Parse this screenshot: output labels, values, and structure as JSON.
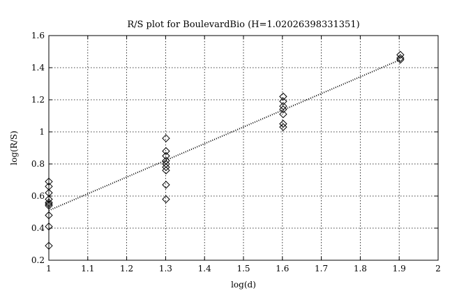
{
  "chart_data": {
    "type": "scatter",
    "title": "R/S plot for BoulevardBio (H=1.02026398331351)",
    "xlabel": "log(d)",
    "ylabel": "log(R/S)",
    "xlim": [
      1,
      2
    ],
    "ylim": [
      0.2,
      1.6
    ],
    "xticks": [
      "1",
      "1.1",
      "1.2",
      "1.3",
      "1.4",
      "1.5",
      "1.6",
      "1.7",
      "1.8",
      "1.9",
      "2"
    ],
    "yticks": [
      "0.2",
      "0.4",
      "0.6",
      "0.8",
      "1",
      "1.2",
      "1.4",
      "1.6"
    ],
    "xtick_values": [
      1,
      1.1,
      1.2,
      1.3,
      1.4,
      1.5,
      1.6,
      1.7,
      1.8,
      1.9,
      2
    ],
    "ytick_values": [
      0.2,
      0.4,
      0.6,
      0.8,
      1,
      1.2,
      1.4,
      1.6
    ],
    "grid": true,
    "marker": "diamond",
    "points": [
      {
        "x": 1.0,
        "y": 0.69
      },
      {
        "x": 1.0,
        "y": 0.66
      },
      {
        "x": 1.0,
        "y": 0.62
      },
      {
        "x": 1.0,
        "y": 0.58
      },
      {
        "x": 1.0,
        "y": 0.56
      },
      {
        "x": 1.0,
        "y": 0.55
      },
      {
        "x": 1.0,
        "y": 0.54
      },
      {
        "x": 1.0,
        "y": 0.48
      },
      {
        "x": 1.0,
        "y": 0.41
      },
      {
        "x": 1.0,
        "y": 0.29
      },
      {
        "x": 1.301,
        "y": 0.96
      },
      {
        "x": 1.301,
        "y": 0.88
      },
      {
        "x": 1.301,
        "y": 0.85
      },
      {
        "x": 1.301,
        "y": 0.82
      },
      {
        "x": 1.301,
        "y": 0.8
      },
      {
        "x": 1.301,
        "y": 0.78
      },
      {
        "x": 1.301,
        "y": 0.76
      },
      {
        "x": 1.301,
        "y": 0.67
      },
      {
        "x": 1.301,
        "y": 0.58
      },
      {
        "x": 1.602,
        "y": 1.22
      },
      {
        "x": 1.602,
        "y": 1.19
      },
      {
        "x": 1.602,
        "y": 1.16
      },
      {
        "x": 1.602,
        "y": 1.14
      },
      {
        "x": 1.602,
        "y": 1.11
      },
      {
        "x": 1.602,
        "y": 1.05
      },
      {
        "x": 1.602,
        "y": 1.03
      },
      {
        "x": 1.903,
        "y": 1.48
      },
      {
        "x": 1.903,
        "y": 1.46
      },
      {
        "x": 1.903,
        "y": 1.45
      }
    ],
    "fit_line": {
      "x": [
        1.0,
        1.903
      ],
      "y": [
        0.51,
        1.45
      ],
      "style": "dotted"
    }
  }
}
